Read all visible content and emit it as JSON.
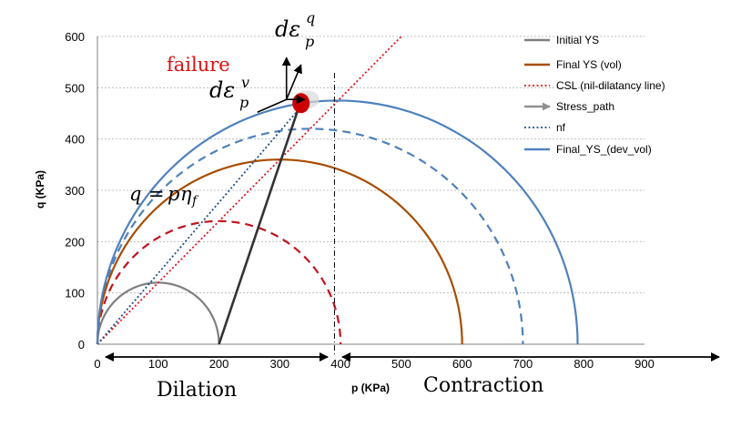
{
  "chart_data": {
    "type": "line",
    "title": "",
    "xlabel": "p (KPa)",
    "ylabel": "q (KPa)",
    "xlim": [
      0,
      900
    ],
    "ylim": [
      0,
      600
    ],
    "xticks": [
      0,
      100,
      200,
      300,
      400,
      500,
      600,
      700,
      800,
      900
    ],
    "yticks": [
      0,
      100,
      200,
      300,
      400,
      500,
      600
    ],
    "grid": "horizontal dotted",
    "legend_position": "right",
    "series": [
      {
        "name": "Initial YS",
        "style": "solid",
        "color": "#7f7f7f",
        "shape": "ellipse",
        "center_p": 100,
        "p_max": 200,
        "q_max": 120
      },
      {
        "name": "Final YS (vol)",
        "style": "solid",
        "color": "#a84c00",
        "shape": "ellipse",
        "center_p": 300,
        "p_max": 600,
        "q_max": 360
      },
      {
        "name": "CSL (nil-dilatancy line)",
        "style": "dotted",
        "color": "#e0141e",
        "x": [
          0,
          500
        ],
        "y": [
          0,
          600
        ]
      },
      {
        "name": "Stress_path",
        "style": "arrow",
        "color": "#909090",
        "x": [
          200,
          335
        ],
        "y": [
          0,
          475
        ]
      },
      {
        "name": "nf",
        "style": "dotted",
        "color": "#1f4e8c",
        "x": [
          0,
          340
        ],
        "y": [
          0,
          470
        ]
      },
      {
        "name": "Final_YS_(dev_vol)",
        "style": "solid",
        "color": "#4f81bd",
        "shape": "ellipse",
        "center_p": 395,
        "p_max": 790,
        "q_max": 475
      }
    ],
    "extra_curves": [
      {
        "style": "dashed",
        "color": "#c0141e",
        "shape": "ellipse",
        "center_p": 200,
        "p_max": 400,
        "q_max": 240
      },
      {
        "style": "dashed",
        "color": "#4f81bd",
        "shape": "ellipse",
        "center_p": 350,
        "p_max": 700,
        "q_max": 420
      }
    ],
    "stress_path_dark": {
      "x": [
        200,
        335
      ],
      "y": [
        0,
        475
      ],
      "color": "#333333"
    },
    "failure_point": {
      "p": 335,
      "q": 470
    },
    "divider_p": 390
  },
  "annotations": {
    "failure_label": "failure",
    "dilation_label": "Dilation",
    "contraction_label": "Contraction",
    "eq_q": "q",
    "eq_equals": "=",
    "eq_p": "p",
    "eq_eta": "η",
    "eq_sub_f": "f",
    "d_eps": "dε",
    "sup_q": "q",
    "sup_v": "v",
    "sub_p": "p"
  },
  "colors": {
    "failure_text": "#dd1111",
    "failure_point": "#cc0000"
  }
}
